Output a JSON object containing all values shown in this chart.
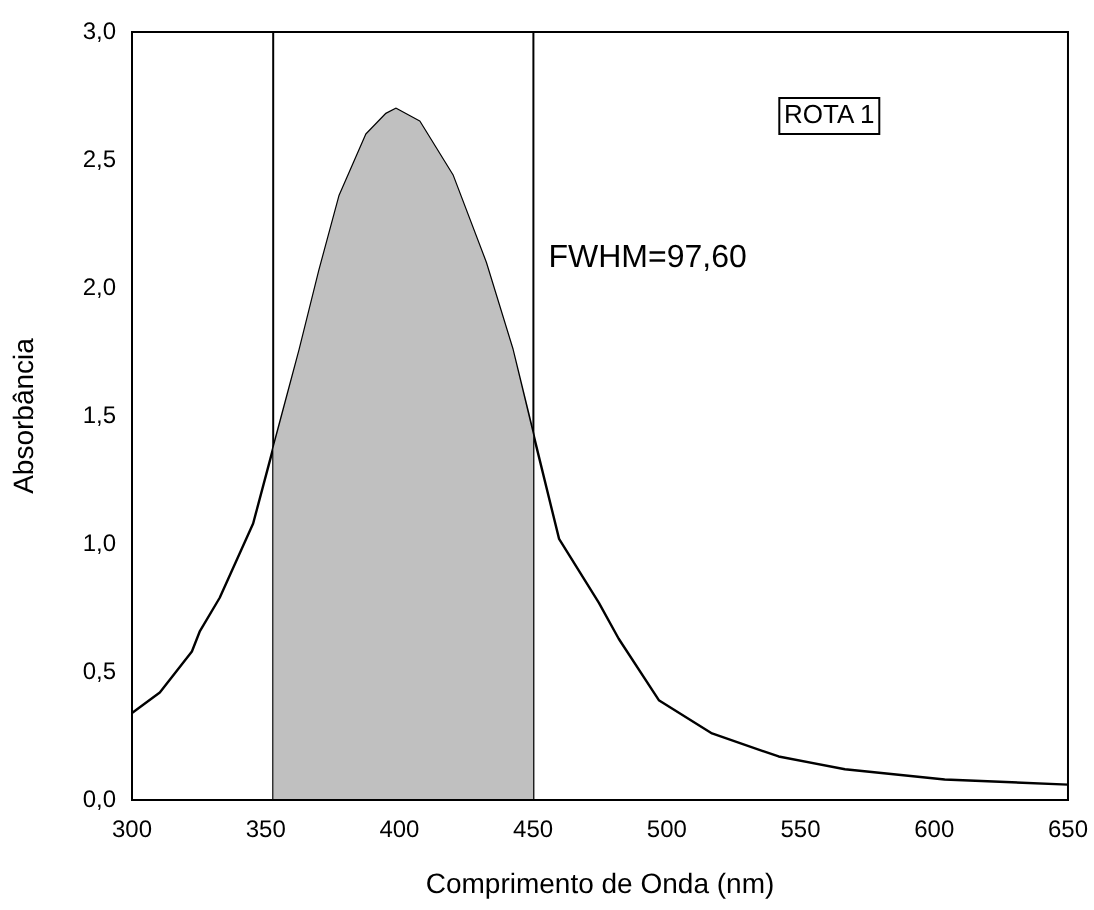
{
  "chart_data": {
    "type": "line",
    "xlabel": "Comprimento de Onda (nm)",
    "ylabel": "Absorbância",
    "series": [
      {
        "type": "area",
        "color": "#c0c0c0",
        "x": [
          352.8,
          362.7,
          370.1,
          377.6,
          387.6,
          395,
          398.7,
          407.5,
          419.9,
          432.3,
          442.3,
          450.1
        ],
        "values": [
          1.37,
          1.76,
          2.07,
          2.36,
          2.6,
          2.68,
          2.7,
          2.65,
          2.44,
          2.1,
          1.76,
          1.42
        ]
      },
      {
        "color": "#000000",
        "x": [
          300,
          310.4,
          322.4,
          325.4,
          332.8,
          345.3,
          353.2,
          362.7,
          370.1,
          377.6,
          387.6,
          395,
          398.7,
          407.5,
          419.9,
          432.3,
          442.3,
          451,
          459.7,
          474.6,
          482,
          497,
          516.9,
          541.8,
          566.6,
          603.9,
          650
        ],
        "values": [
          0.34,
          0.42,
          0.58,
          0.66,
          0.79,
          1.08,
          1.39,
          1.76,
          2.07,
          2.36,
          2.6,
          2.68,
          2.7,
          2.65,
          2.44,
          2.1,
          1.76,
          1.39,
          1.02,
          0.77,
          0.63,
          0.39,
          0.26,
          0.17,
          0.12,
          0.08,
          0.06
        ]
      }
    ],
    "xlim": [
      300,
      650
    ],
    "xticks": [
      300,
      350,
      400,
      450,
      500,
      550,
      600,
      650
    ],
    "ylim": [
      0,
      3
    ],
    "yticks": [
      {
        "value": 0,
        "label": "0,0"
      },
      {
        "value": 0.5,
        "label": "0,5"
      },
      {
        "value": 1,
        "label": "1,0"
      },
      {
        "value": 1.5,
        "label": "1,5"
      },
      {
        "value": 2,
        "label": "2,0"
      },
      {
        "value": 2.5,
        "label": "2,5"
      },
      {
        "value": 3,
        "label": "3,0"
      }
    ],
    "ref_lines": [
      {
        "axis": "x",
        "value": 352.8,
        "color": "#000000"
      },
      {
        "axis": "x",
        "value": 450.1,
        "color": "#000000"
      }
    ],
    "annotations": [
      "ROTA 1",
      "FWHM=97,60"
    ],
    "grid": false,
    "legend": false,
    "marker": "none",
    "line_style": "solid"
  }
}
